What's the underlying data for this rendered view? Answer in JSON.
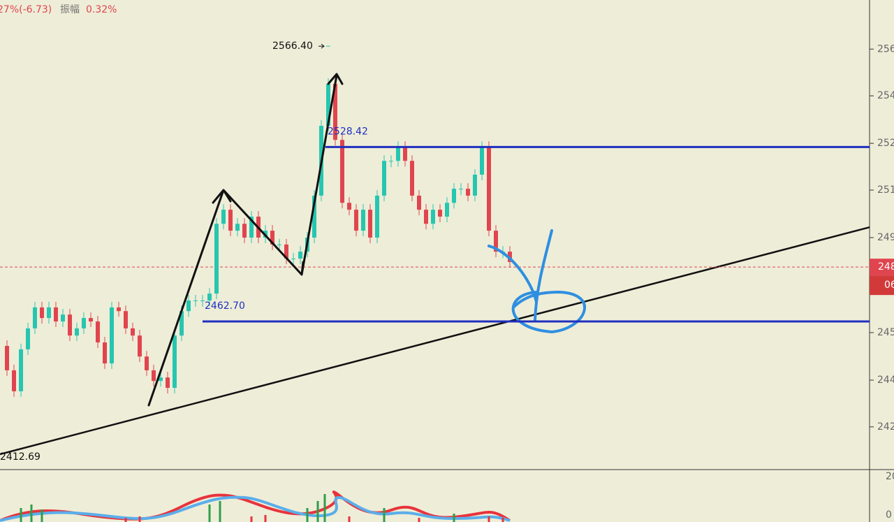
{
  "chart_data": {
    "type": "candlestick",
    "header": {
      "change": "27%(-6.73)",
      "amplitude_label": "振幅",
      "amplitude": "0.32%"
    },
    "ylim": [
      2406.9,
      2583.8
    ],
    "yticks": [
      {
        "value": 2565.3,
        "label": "256"
      },
      {
        "value": 2547.7,
        "label": "254"
      },
      {
        "value": 2529.8,
        "label": "252"
      },
      {
        "value": 2512.2,
        "label": "251"
      },
      {
        "value": 2494.3,
        "label": "249"
      },
      {
        "value": 2458.5,
        "label": "245"
      },
      {
        "value": 2440.6,
        "label": "244"
      },
      {
        "value": 2423.0,
        "label": "242"
      }
    ],
    "closes": [
      2453.5,
      2444.3,
      2436.4,
      2452.2,
      2460.1,
      2468.0,
      2464.0,
      2468.0,
      2462.7,
      2465.3,
      2457.4,
      2460.1,
      2464.0,
      2462.7,
      2454.8,
      2446.9,
      2468.0,
      2466.6,
      2460.1,
      2457.4,
      2449.5,
      2444.3,
      2440.3,
      2441.6,
      2437.7,
      2457.4,
      2466.6,
      2470.6,
      2470.6,
      2470.6,
      2473.2,
      2499.5,
      2504.8,
      2496.9,
      2499.5,
      2494.3,
      2502.2,
      2494.3,
      2496.9,
      2491.7,
      2491.7,
      2486.4,
      2486.4,
      2489.0,
      2494.3,
      2510.1,
      2536.4,
      2552.2,
      2531.1,
      2507.4,
      2504.8,
      2496.9,
      2504.8,
      2494.3,
      2510.1,
      2523.2,
      2523.2,
      2528.5,
      2523.2,
      2510.1,
      2504.8,
      2499.5,
      2504.8,
      2502.2,
      2507.4,
      2512.7,
      2512.7,
      2510.1,
      2518.0,
      2528.5,
      2496.9,
      2489.0,
      2489.0,
      2485.1
    ],
    "up_color": "#26c6b0",
    "down_color": "#e0454f",
    "high": {
      "value": 2566.4,
      "label": "2566.40"
    },
    "levels": [
      {
        "value": 2528.42,
        "label": "2528.42"
      },
      {
        "value": 2462.7,
        "label": "2462.70"
      }
    ],
    "level_color": "#1f2fbf",
    "trendline": {
      "start": 2412.69,
      "start_label": "2412.69",
      "end": 2498.2
    },
    "last_price": {
      "value": 2483.2,
      "labels": [
        "248",
        "06"
      ]
    },
    "sub_ticks": [
      "20",
      "0"
    ]
  }
}
